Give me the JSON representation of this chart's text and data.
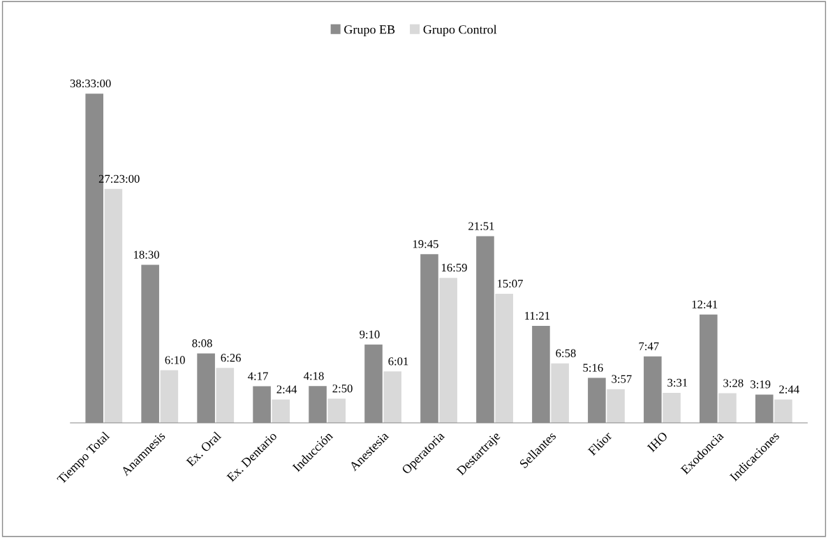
{
  "chart_data": {
    "type": "bar",
    "categories": [
      "Tiempo Total",
      "Anamnesis",
      "Ex. Oral",
      "Ex. Dentario",
      "Inducción",
      "Anestesia",
      "Operatoria",
      "Destartraje",
      "Sellantes",
      "Flúor",
      "IHO",
      "Exodoncia",
      "Indicaciones"
    ],
    "series": [
      {
        "name": "Grupo EB",
        "color": "#8c8c8c",
        "values": [
          2313,
          1110,
          488,
          257,
          258,
          550,
          1185,
          1311,
          681,
          316,
          467,
          761,
          199
        ],
        "value_labels": [
          "38:33:00",
          "18:30",
          "8:08",
          "4:17",
          "4:18",
          "9:10",
          "19:45",
          "21:51",
          "11:21",
          "5:16",
          "7:47",
          "12:41",
          "3:19"
        ]
      },
      {
        "name": "Grupo Control",
        "color": "#d9d9d9",
        "values": [
          1643,
          370,
          386,
          164,
          170,
          361,
          1019,
          907,
          418,
          237,
          211,
          208,
          164
        ],
        "value_labels": [
          "27:23:00",
          "6:10",
          "6:26",
          "2:44",
          "2:50",
          "6:01",
          "16:59",
          "15:07",
          "6:58",
          "3:57",
          "3:31",
          "3:28",
          "2:44"
        ]
      }
    ],
    "legend": "top",
    "grid": false
  }
}
